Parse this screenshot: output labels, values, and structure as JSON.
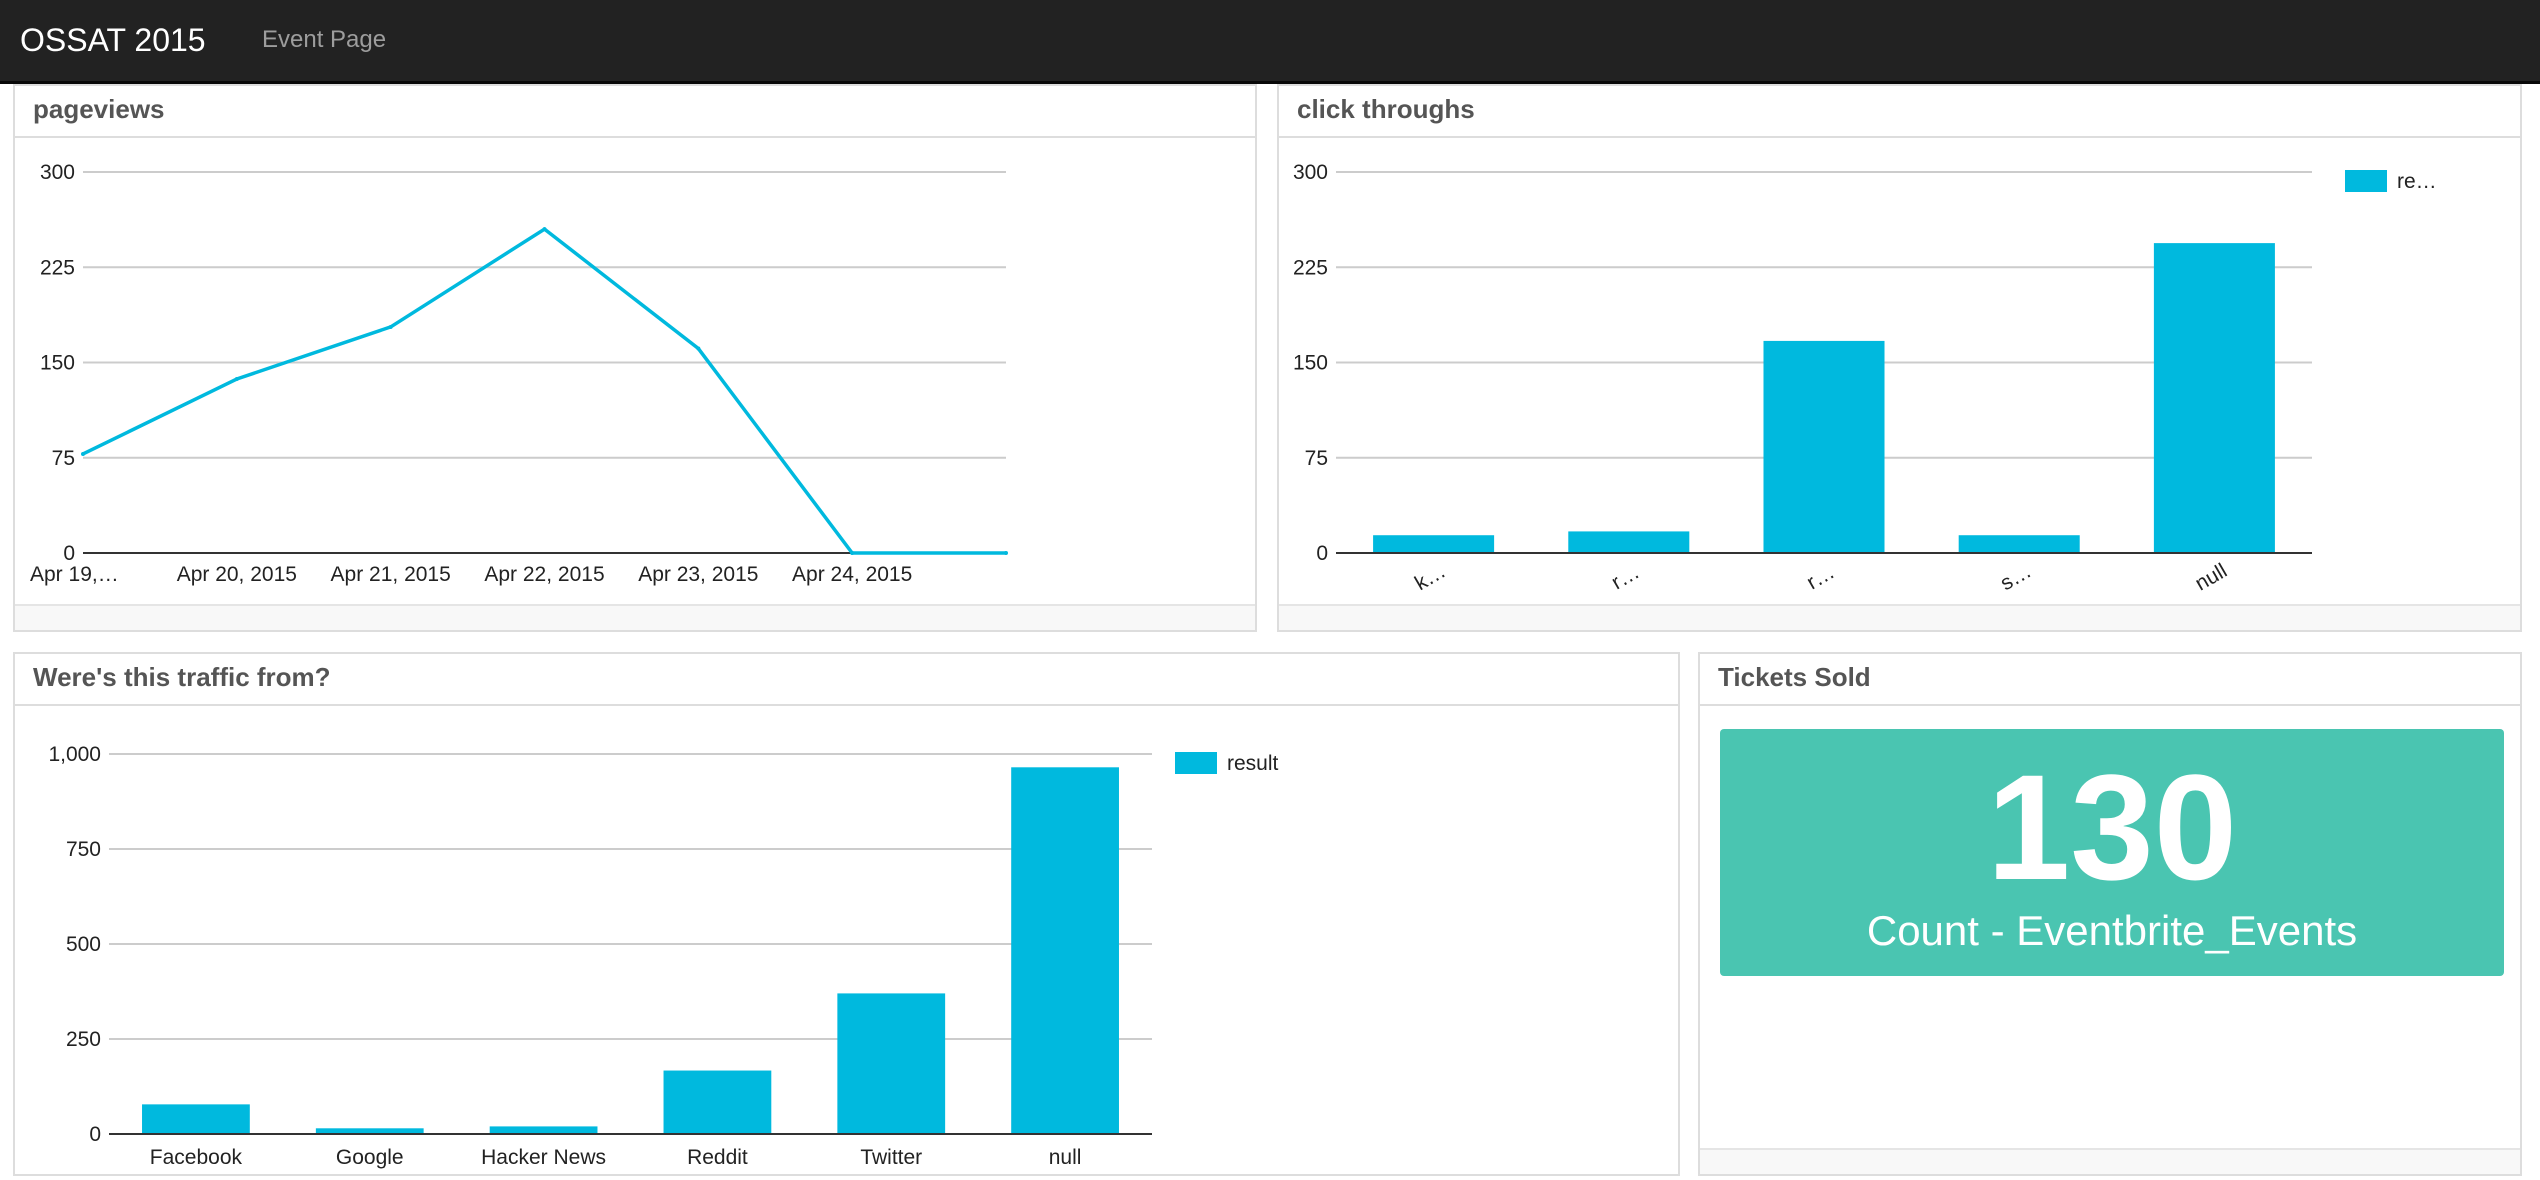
{
  "nav": {
    "brand": "OSSAT 2015",
    "link": "Event Page"
  },
  "colors": {
    "series": "#00b9de",
    "tile": "#4ac5b1"
  },
  "panels": {
    "pageviews": "pageviews",
    "clicks": "click throughs",
    "traffic": "Were's this traffic from?",
    "tickets": "Tickets Sold"
  },
  "tickets": {
    "value": "130",
    "label": "Count - Eventbrite_Events"
  },
  "chart_data": [
    {
      "id": "pageviews",
      "type": "line",
      "categories": [
        "Apr 19,…",
        "Apr 20, 2015",
        "Apr 21, 2015",
        "Apr 22, 2015",
        "Apr 23, 2015",
        "Apr 24, 2015",
        ""
      ],
      "values": [
        78,
        137,
        178,
        255,
        161,
        0,
        0
      ],
      "yticks": [
        "0",
        "75",
        "150",
        "225",
        "300"
      ],
      "ylim": [
        0,
        300
      ],
      "grid": true
    },
    {
      "id": "clicks",
      "type": "bar",
      "categories": [
        "k…",
        "r…",
        "r…",
        "s…",
        "null"
      ],
      "values": [
        14,
        17,
        167,
        14,
        244
      ],
      "yticks": [
        "0",
        "75",
        "150",
        "225",
        "300"
      ],
      "ylim": [
        0,
        300
      ],
      "legend": "re…",
      "legend_position": "right",
      "rotated_labels": true,
      "grid": true
    },
    {
      "id": "traffic",
      "type": "bar",
      "categories": [
        "Facebook",
        "Google",
        "Hacker News",
        "Reddit",
        "Twitter",
        "null"
      ],
      "values": [
        78,
        15,
        20,
        167,
        370,
        965
      ],
      "yticks": [
        "0",
        "250",
        "500",
        "750",
        "1,000"
      ],
      "ylim": [
        0,
        1000
      ],
      "legend": "result",
      "legend_position": "right",
      "grid": true
    }
  ]
}
